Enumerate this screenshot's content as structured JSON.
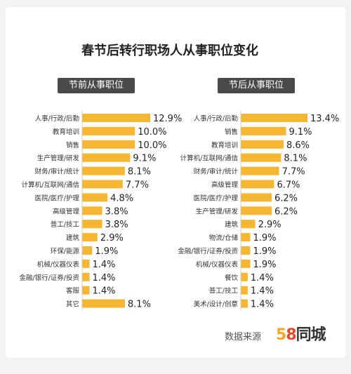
{
  "title": "春节后转行职场人从事职位变化",
  "footer": {
    "source_label": "数据来源",
    "logo_5": "5",
    "logo_8": "8",
    "logo_text": "同城"
  },
  "colors": {
    "bar": "#F5B731",
    "header_bg": "#4A4A4A"
  },
  "chart_data": [
    {
      "type": "bar",
      "orientation": "horizontal",
      "title": "节前从事职位",
      "categories": [
        "人事/行政/后勤",
        "教育培训",
        "销售",
        "生产管理/研发",
        "财务/审计/统计",
        "计算机/互联网/通信",
        "医院/医疗/护理",
        "高级管理",
        "普工/技工",
        "建筑",
        "环保/能源",
        "机械/仪器仪表",
        "金融/银行/证券/投资",
        "客服",
        "其它"
      ],
      "values": [
        12.9,
        10.0,
        10.0,
        9.1,
        8.1,
        7.7,
        4.8,
        3.8,
        3.8,
        2.9,
        1.9,
        1.4,
        1.4,
        1.4,
        8.1
      ],
      "labels": [
        "12.9%",
        "10.0%",
        "10.0%",
        "9.1%",
        "8.1%",
        "7.7%",
        "4.8%",
        "3.8%",
        "3.8%",
        "2.9%",
        "1.9%",
        "1.4%",
        "1.4%",
        "1.4%",
        "8.1%"
      ]
    },
    {
      "type": "bar",
      "orientation": "horizontal",
      "title": "节后从事职位",
      "categories": [
        "人事/行政/后勤",
        "销售",
        "教育培训",
        "计算机/互联网/通信",
        "财务/审计/统计",
        "高级管理",
        "医院/医疗/护理",
        "生产管理/研发",
        "建筑",
        "物流/仓储",
        "金融/银行/证券/投资",
        "机械/仪器仪表",
        "餐饮",
        "普工/技工",
        "美术/设计/创意"
      ],
      "values": [
        13.4,
        9.1,
        8.6,
        8.1,
        7.7,
        6.7,
        6.2,
        6.2,
        2.9,
        1.9,
        1.9,
        1.9,
        1.4,
        1.4,
        1.4
      ],
      "labels": [
        "13.4%",
        "9.1%",
        "8.6%",
        "8.1%",
        "7.7%",
        "6.7%",
        "6.2%",
        "6.2%",
        "2.9%",
        "1.9%",
        "1.9%",
        "1.9%",
        "1.4%",
        "1.4%",
        "1.4%"
      ]
    }
  ]
}
